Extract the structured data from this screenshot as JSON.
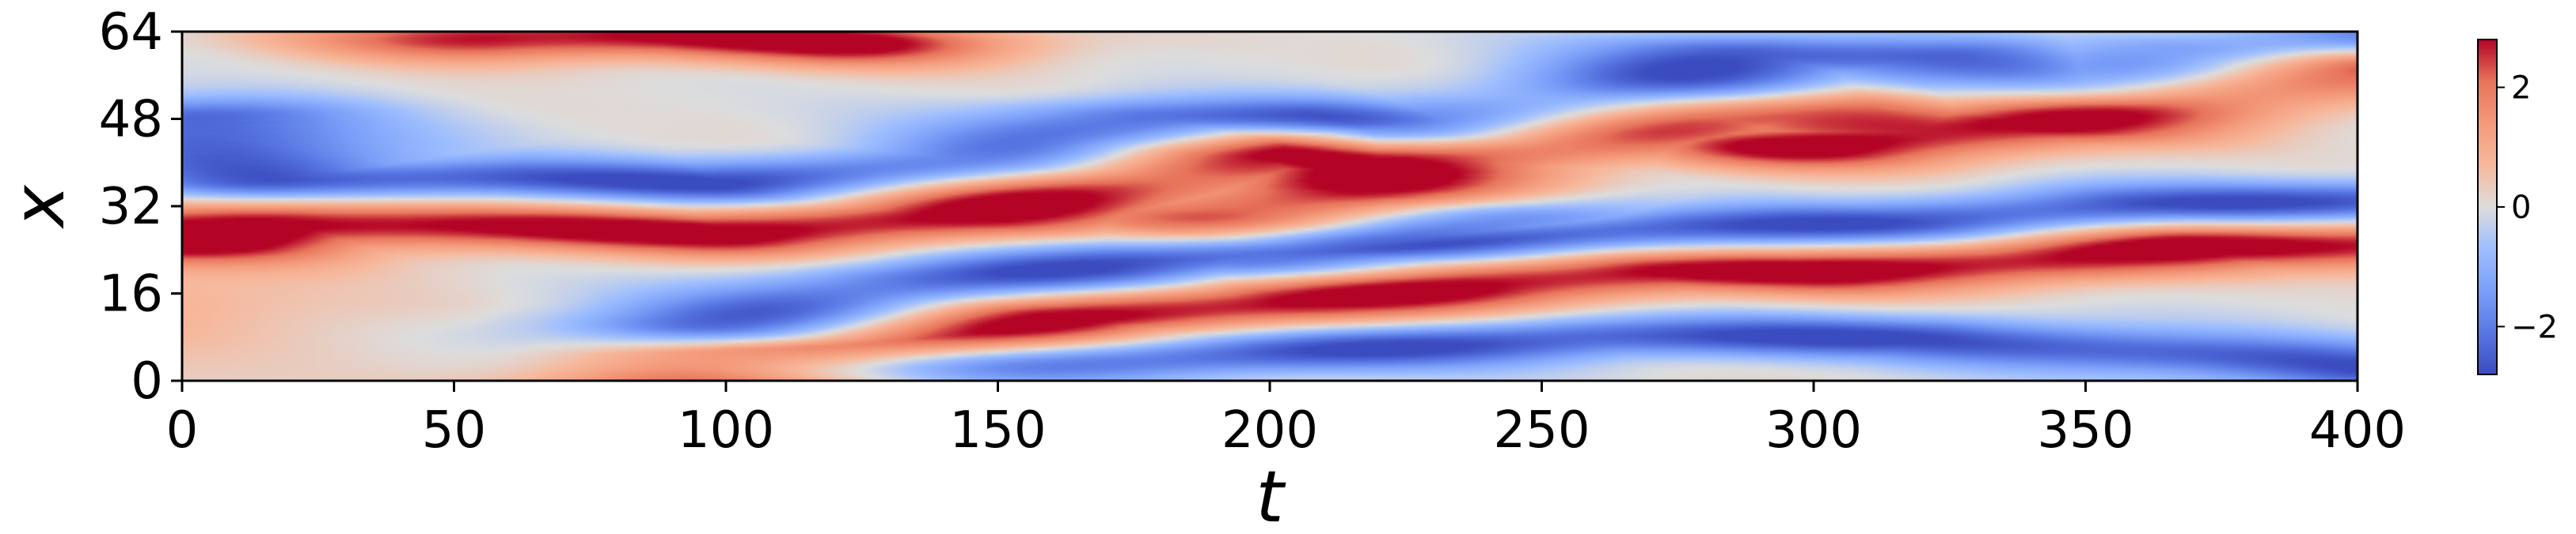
{
  "chart_data": {
    "type": "heatmap",
    "title": "",
    "xlabel": "t",
    "ylabel": "x",
    "xlim": [
      0,
      400
    ],
    "ylim": [
      0,
      64
    ],
    "xticks": [
      0,
      50,
      100,
      150,
      200,
      250,
      300,
      350,
      400
    ],
    "yticks": [
      0,
      16,
      32,
      48,
      64
    ],
    "colormap": "coolwarm",
    "colorbar": {
      "range": [
        -2.8,
        2.8
      ],
      "ticks": [
        2,
        0,
        -2
      ],
      "tick_labels": [
        "2",
        "0",
        "−2"
      ]
    },
    "features": {
      "description_only": false,
      "ridges_high": [
        {
          "points": [
            [
              0,
              26
            ],
            [
              20,
              29
            ],
            [
              60,
              28
            ],
            [
              100,
              27
            ],
            [
              140,
              30
            ],
            [
              170,
              36
            ],
            [
              190,
              41
            ],
            [
              205,
              42
            ],
            [
              220,
              40
            ]
          ]
        },
        {
          "points": [
            [
              220,
              40
            ],
            [
              250,
              44
            ],
            [
              280,
              49
            ],
            [
              300,
              49
            ],
            [
              320,
              46
            ],
            [
              340,
              47
            ],
            [
              370,
              53
            ],
            [
              390,
              57
            ],
            [
              400,
              58
            ]
          ]
        },
        {
          "points": [
            [
              100,
              0
            ],
            [
              130,
              6
            ],
            [
              160,
              12
            ],
            [
              200,
              14
            ],
            [
              240,
              18
            ],
            [
              270,
              20
            ],
            [
              300,
              20
            ],
            [
              340,
              22
            ],
            [
              370,
              25
            ],
            [
              400,
              25
            ]
          ]
        },
        {
          "points": [
            [
              200,
              30
            ],
            [
              215,
              34
            ],
            [
              225,
              40
            ]
          ]
        },
        {
          "points": [
            [
              300,
              43
            ],
            [
              320,
              45
            ],
            [
              335,
              47
            ]
          ]
        },
        {
          "points": [
            [
              60,
              63
            ],
            [
              90,
              63
            ],
            [
              120,
              62
            ]
          ]
        }
      ],
      "ridges_low": [
        {
          "points": [
            [
              0,
              48
            ],
            [
              20,
              37
            ],
            [
              60,
              37
            ],
            [
              100,
              36
            ],
            [
              150,
              40
            ],
            [
              180,
              48
            ],
            [
              205,
              48
            ],
            [
              230,
              47
            ]
          ]
        },
        {
          "points": [
            [
              230,
              46
            ],
            [
              260,
              51
            ],
            [
              290,
              60
            ],
            [
              320,
              59
            ],
            [
              350,
              54
            ],
            [
              380,
              60
            ],
            [
              400,
              62
            ]
          ]
        },
        {
          "points": [
            [
              100,
              10
            ],
            [
              140,
              18
            ],
            [
              180,
              22
            ],
            [
              240,
              26
            ],
            [
              280,
              28
            ],
            [
              320,
              29
            ],
            [
              360,
              32
            ],
            [
              400,
              33
            ]
          ]
        },
        {
          "points": [
            [
              120,
              2
            ],
            [
              200,
              5
            ],
            [
              260,
              8
            ],
            [
              320,
              8
            ],
            [
              380,
              4
            ],
            [
              400,
              2
            ]
          ]
        },
        {
          "points": [
            [
              200,
              22
            ],
            [
              220,
              26
            ],
            [
              240,
              30
            ]
          ]
        }
      ]
    }
  }
}
